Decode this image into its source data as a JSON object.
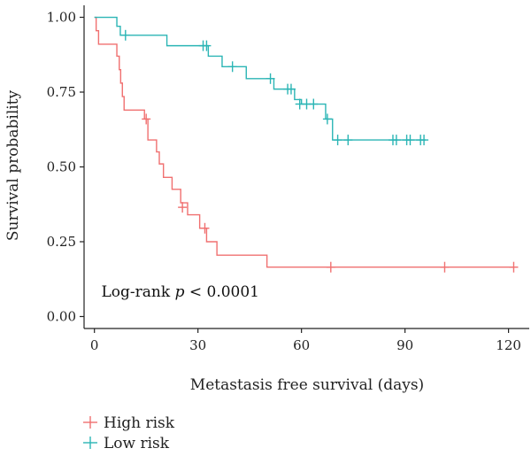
{
  "chart_data": {
    "type": "line",
    "subtype": "kaplan-meier",
    "title": "",
    "xlabel": "Metastasis free survival (days)",
    "ylabel": "Survival probability",
    "xlim": [
      -3,
      126
    ],
    "ylim": [
      -0.04,
      1.04
    ],
    "x_ticks": [
      0,
      30,
      60,
      90,
      120
    ],
    "y_ticks": [
      0.0,
      0.25,
      0.5,
      0.75,
      1.0
    ],
    "y_tick_labels": [
      "0.00",
      "0.25",
      "0.50",
      "0.75",
      "1.00"
    ],
    "grid": false,
    "legend_position": "bottom-left",
    "annotation": {
      "prefix": "Log-rank ",
      "symbol": "p",
      "suffix": " < 0.0001",
      "x": 2,
      "y": 0.085
    },
    "series": [
      {
        "name": "High risk",
        "color": "#f07070",
        "steps": [
          [
            0,
            1.0
          ],
          [
            0.5,
            0.955
          ],
          [
            1.2,
            0.91
          ],
          [
            6.5,
            0.87
          ],
          [
            7.2,
            0.825
          ],
          [
            7.6,
            0.78
          ],
          [
            8.1,
            0.735
          ],
          [
            8.6,
            0.69
          ],
          [
            14.5,
            0.66
          ],
          [
            15.5,
            0.59
          ],
          [
            18,
            0.55
          ],
          [
            18.8,
            0.51
          ],
          [
            20,
            0.465
          ],
          [
            22.5,
            0.425
          ],
          [
            25,
            0.38
          ],
          [
            27,
            0.34
          ],
          [
            30.5,
            0.295
          ],
          [
            32.5,
            0.25
          ],
          [
            35.5,
            0.205
          ],
          [
            50,
            0.165
          ]
        ],
        "end_x": 121.5,
        "censors": [
          [
            15,
            0.66
          ],
          [
            25.5,
            0.365
          ],
          [
            32,
            0.295
          ],
          [
            68.5,
            0.165
          ],
          [
            101.5,
            0.165
          ],
          [
            121.5,
            0.165
          ]
        ]
      },
      {
        "name": "Low risk",
        "color": "#2bb5b5",
        "steps": [
          [
            0,
            1.0
          ],
          [
            6.5,
            0.97
          ],
          [
            7.5,
            0.94
          ],
          [
            21,
            0.905
          ],
          [
            33,
            0.87
          ],
          [
            37,
            0.835
          ],
          [
            44,
            0.795
          ],
          [
            52,
            0.76
          ],
          [
            58,
            0.725
          ],
          [
            60,
            0.71
          ],
          [
            67,
            0.66
          ],
          [
            69,
            0.59
          ]
        ],
        "end_x": 96,
        "censors": [
          [
            9,
            0.94
          ],
          [
            31.5,
            0.905
          ],
          [
            32.5,
            0.905
          ],
          [
            40,
            0.835
          ],
          [
            51,
            0.795
          ],
          [
            56,
            0.76
          ],
          [
            57,
            0.76
          ],
          [
            59.5,
            0.71
          ],
          [
            61.5,
            0.71
          ],
          [
            63.5,
            0.71
          ],
          [
            67.5,
            0.66
          ],
          [
            70.5,
            0.59
          ],
          [
            73.5,
            0.59
          ],
          [
            86.5,
            0.59
          ],
          [
            87.5,
            0.59
          ],
          [
            90.5,
            0.59
          ],
          [
            91.5,
            0.59
          ],
          [
            94.5,
            0.59
          ],
          [
            95.5,
            0.59
          ]
        ]
      }
    ]
  }
}
